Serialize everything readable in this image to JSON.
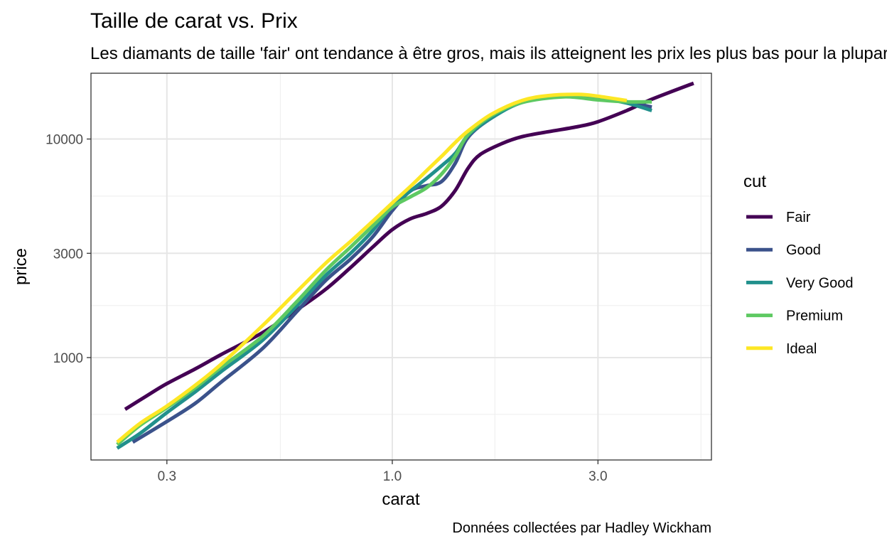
{
  "chart_data": {
    "type": "line",
    "title": "Taille de carat vs. Prix",
    "subtitle": "Les diamants de taille 'fair' ont tendance à être gros, mais ils atteignent les prix les plus bas pour la plupart des tailles de carats.",
    "caption": "Données collectées par Hadley Wickham",
    "xlabel": "carat",
    "ylabel": "price",
    "x_scale": "log10",
    "y_scale": "log10",
    "xlim": [
      0.2,
      5.5
    ],
    "ylim": [
      340,
      20000
    ],
    "x_ticks": [
      {
        "value": 0.3,
        "label": "0.3"
      },
      {
        "value": 1.0,
        "label": "1.0"
      },
      {
        "value": 3.0,
        "label": "3.0"
      }
    ],
    "y_ticks": [
      {
        "value": 1000,
        "label": "1000"
      },
      {
        "value": 3000,
        "label": "3000"
      },
      {
        "value": 10000,
        "label": "10000"
      }
    ],
    "x_minor": [
      0.55,
      1.73,
      5.2
    ],
    "y_minor": [
      550,
      1730,
      5480
    ],
    "grid": true,
    "legend": {
      "title": "cut",
      "position": "right"
    },
    "series": [
      {
        "name": "Fair",
        "color": "#440154",
        "x": [
          0.24,
          0.27,
          0.3,
          0.35,
          0.4,
          0.5,
          0.6,
          0.7,
          0.8,
          0.9,
          1.0,
          1.1,
          1.2,
          1.3,
          1.4,
          1.5,
          1.6,
          1.8,
          2.0,
          2.3,
          2.7,
          3.0,
          3.5,
          4.0,
          5.0
        ],
        "y": [
          580,
          670,
          760,
          890,
          1030,
          1300,
          1650,
          2050,
          2580,
          3200,
          3850,
          4310,
          4560,
          4920,
          5820,
          7370,
          8500,
          9550,
          10250,
          10800,
          11400,
          12000,
          13500,
          15200,
          18000
        ]
      },
      {
        "name": "Good",
        "color": "#3b528b",
        "x": [
          0.25,
          0.3,
          0.35,
          0.4,
          0.5,
          0.6,
          0.7,
          0.8,
          0.9,
          1.0,
          1.1,
          1.2,
          1.3,
          1.4,
          1.5,
          1.7,
          2.0,
          2.5,
          3.0,
          3.5,
          4.0
        ],
        "y": [
          410,
          510,
          620,
          770,
          1100,
          1620,
          2250,
          2820,
          3560,
          4700,
          5780,
          6110,
          6380,
          7750,
          10200,
          12500,
          14800,
          15800,
          15500,
          14800,
          14000
        ]
      },
      {
        "name": "Very Good",
        "color": "#21908c",
        "x": [
          0.23,
          0.26,
          0.3,
          0.35,
          0.4,
          0.5,
          0.6,
          0.7,
          0.8,
          0.9,
          1.0,
          1.1,
          1.2,
          1.3,
          1.4,
          1.5,
          1.7,
          2.0,
          2.5,
          3.0,
          3.5,
          4.0
        ],
        "y": [
          385,
          450,
          560,
          700,
          860,
          1200,
          1720,
          2370,
          3000,
          3800,
          4950,
          5770,
          6600,
          7530,
          8600,
          10400,
          12500,
          14700,
          15700,
          15400,
          14600,
          13500
        ]
      },
      {
        "name": "Premium",
        "color": "#5ec962",
        "x": [
          0.23,
          0.26,
          0.3,
          0.35,
          0.4,
          0.5,
          0.6,
          0.7,
          0.8,
          0.9,
          1.0,
          1.1,
          1.2,
          1.3,
          1.4,
          1.5,
          1.7,
          2.0,
          2.5,
          3.0,
          3.5,
          4.0
        ],
        "y": [
          400,
          490,
          590,
          730,
          900,
          1250,
          1800,
          2500,
          3200,
          4000,
          4880,
          5430,
          5980,
          6900,
          8350,
          10500,
          12800,
          14700,
          15600,
          15100,
          14800,
          14800
        ]
      },
      {
        "name": "Ideal",
        "color": "#fde725",
        "x": [
          0.23,
          0.26,
          0.3,
          0.35,
          0.4,
          0.5,
          0.6,
          0.7,
          0.8,
          0.9,
          1.0,
          1.1,
          1.2,
          1.3,
          1.4,
          1.5,
          1.7,
          2.0,
          2.3,
          2.7,
          3.0,
          3.5
        ],
        "y": [
          410,
          500,
          600,
          750,
          930,
          1400,
          2000,
          2700,
          3400,
          4200,
          5100,
          6050,
          7150,
          8320,
          9640,
          10900,
          13000,
          15000,
          15800,
          16000,
          15700,
          15000
        ]
      }
    ]
  }
}
